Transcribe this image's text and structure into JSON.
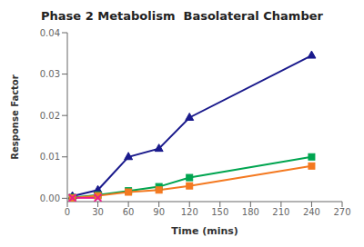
{
  "chart_data": {
    "type": "line",
    "title": "Phase 2 Metabolism  Basolateral Chamber",
    "xlabel": "Time (mins)",
    "ylabel": "Response Factor",
    "x": [
      5,
      30,
      60,
      90,
      120,
      240
    ],
    "xlim": [
      0,
      270
    ],
    "xticks": [
      0,
      30,
      60,
      90,
      120,
      150,
      180,
      210,
      240,
      270
    ],
    "ylim": [
      -0.0008,
      0.04
    ],
    "yticks": [
      {
        "value": 0,
        "label": "0.00"
      },
      0.01,
      0.02,
      0.03,
      0.04
    ],
    "grid": false,
    "series": [
      {
        "color": "#1a1a8c",
        "marker": "triangle",
        "values": [
          0.0005,
          0.002,
          0.01,
          0.012,
          0.0195,
          0.0345
        ]
      },
      {
        "color": "#00a550",
        "marker": "square",
        "values": [
          0.0002,
          0.0008,
          0.0018,
          0.0028,
          0.005,
          0.01
        ]
      },
      {
        "color": "#f47920",
        "marker": "square",
        "values": [
          0.0001,
          0.0006,
          0.0015,
          0.002,
          0.003,
          0.0078
        ]
      },
      {
        "color": "#e91e8c",
        "marker": "x",
        "values": [
          0.0001,
          0.0001,
          null,
          null,
          null,
          null
        ]
      }
    ]
  }
}
